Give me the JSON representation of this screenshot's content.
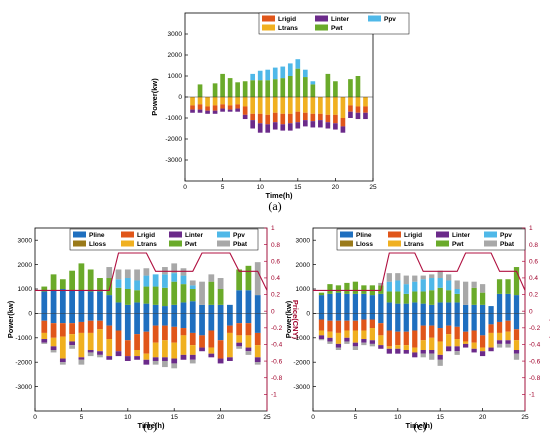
{
  "colors": {
    "Pline": "#1f6fbf",
    "Lrigid": "#e0561a",
    "Linter": "#6b2a8a",
    "Ppv": "#4fb8e8",
    "Lloss": "#9a7a1a",
    "Ltrans": "#f0b020",
    "Pwt": "#6aaa2a",
    "Pbat": "#a8a8a8",
    "price": "#b01040"
  },
  "chart_data": [
    {
      "id": "a",
      "caption": "(a)",
      "type": "bar",
      "stacked": true,
      "xlabel": "Time(h)",
      "ylabel": "Power(kw)",
      "xlim": [
        0,
        25
      ],
      "ylim": [
        -4000,
        4000
      ],
      "xticks": [
        0,
        5,
        10,
        15,
        20,
        25
      ],
      "yticks": [
        -3000,
        -2000,
        -1000,
        0,
        1000,
        2000,
        3000
      ],
      "legend": [
        "Lrigid",
        "Linter",
        "Ppv",
        "Ltrans",
        "Pwt"
      ],
      "x": [
        1,
        2,
        3,
        4,
        5,
        6,
        7,
        8,
        9,
        10,
        11,
        12,
        13,
        14,
        15,
        16,
        17,
        18,
        19,
        20,
        21,
        22,
        23,
        24
      ],
      "positive": [
        {
          "name": "Pwt",
          "values": [
            0,
            600,
            0,
            650,
            1100,
            900,
            700,
            750,
            800,
            800,
            800,
            850,
            900,
            1000,
            1350,
            950,
            600,
            0,
            1100,
            750,
            0,
            850,
            1000,
            0
          ]
        },
        {
          "name": "Ppv",
          "values": [
            0,
            0,
            0,
            0,
            0,
            0,
            0,
            0,
            300,
            450,
            500,
            550,
            550,
            600,
            450,
            350,
            150,
            0,
            0,
            0,
            0,
            0,
            0,
            0
          ]
        }
      ],
      "negative": [
        {
          "name": "Ltrans",
          "values": [
            -400,
            -350,
            -450,
            -400,
            -350,
            -400,
            -350,
            -450,
            -800,
            -800,
            -850,
            -750,
            -800,
            -800,
            -700,
            -750,
            -800,
            -800,
            -850,
            -850,
            -1000,
            -400,
            -450,
            -450
          ]
        },
        {
          "name": "Lrigid",
          "values": [
            -200,
            -250,
            -200,
            -250,
            -200,
            -200,
            -200,
            -400,
            -300,
            -450,
            -450,
            -450,
            -500,
            -450,
            -500,
            -350,
            -350,
            -300,
            -350,
            -400,
            -400,
            -300,
            -300,
            -300
          ]
        },
        {
          "name": "Linter",
          "values": [
            -150,
            -150,
            -150,
            -150,
            -150,
            -100,
            -150,
            -200,
            -400,
            -450,
            -400,
            -350,
            -300,
            -350,
            -300,
            -300,
            -300,
            -350,
            -300,
            -300,
            -300,
            -300,
            -300,
            -300
          ]
        }
      ]
    },
    {
      "id": "b",
      "caption": "(b)",
      "type": "bar",
      "stacked": true,
      "xlabel": "Time(h)",
      "ylabel": "Power(kw)",
      "y2label": "Price(CNY)",
      "xlim": [
        0,
        25
      ],
      "ylim": [
        -4000,
        3500
      ],
      "y2lim": [
        -1.2,
        1
      ],
      "xticks": [
        0,
        5,
        10,
        15,
        20,
        25
      ],
      "yticks": [
        -3000,
        -2000,
        -1000,
        0,
        1000,
        2000,
        3000
      ],
      "y2ticks": [
        "-1",
        "-0.8",
        "-0.6",
        "-0.4",
        "-0.2",
        "0",
        "0.2",
        "0.4",
        "0.6",
        "0.8",
        "1"
      ],
      "legend": [
        "Pline",
        "Lrigid",
        "Linter",
        "Ppv",
        "Lloss",
        "Ltrans",
        "Pwt",
        "Pbat"
      ],
      "x": [
        1,
        2,
        3,
        4,
        5,
        6,
        7,
        8,
        9,
        10,
        11,
        12,
        13,
        14,
        15,
        16,
        17,
        18,
        19,
        20,
        21,
        22,
        23,
        24
      ],
      "positive": [
        {
          "name": "Pline",
          "values": [
            900,
            950,
            1000,
            950,
            950,
            900,
            900,
            750,
            450,
            350,
            450,
            400,
            350,
            300,
            350,
            450,
            500,
            350,
            350,
            350,
            350,
            950,
            950,
            750
          ]
        },
        {
          "name": "Pwt",
          "values": [
            200,
            650,
            400,
            800,
            1100,
            900,
            550,
            700,
            600,
            650,
            500,
            700,
            750,
            750,
            950,
            750,
            500,
            0,
            950,
            650,
            0,
            850,
            1000,
            0
          ]
        },
        {
          "name": "Ppv",
          "values": [
            0,
            0,
            0,
            0,
            0,
            0,
            0,
            0,
            350,
            450,
            400,
            450,
            500,
            550,
            350,
            350,
            150,
            0,
            0,
            0,
            0,
            0,
            0,
            0
          ]
        },
        {
          "name": "Pbat",
          "values": [
            0,
            0,
            0,
            0,
            0,
            0,
            0,
            450,
            400,
            350,
            450,
            300,
            0,
            300,
            400,
            300,
            200,
            950,
            300,
            450,
            0,
            0,
            0,
            1350
          ]
        }
      ],
      "negative": [
        {
          "name": "Pline",
          "values": [
            -300,
            -400,
            -400,
            -400,
            -350,
            -300,
            -300,
            -500,
            -700,
            -1100,
            -850,
            -750,
            -500,
            -500,
            -550,
            -600,
            -800,
            -900,
            -700,
            -1100,
            -500,
            -400,
            -400,
            -800
          ]
        },
        {
          "name": "Lrigid",
          "values": [
            -500,
            -600,
            -550,
            -450,
            -450,
            -500,
            -350,
            -550,
            -850,
            -650,
            -650,
            -900,
            -700,
            -600,
            -650,
            -300,
            -500,
            -500,
            -700,
            -750,
            -300,
            -500,
            -500,
            -500
          ]
        },
        {
          "name": "Ltrans",
          "values": [
            -250,
            -350,
            -900,
            -300,
            -1000,
            -700,
            -900,
            -700,
            0,
            0,
            -250,
            -250,
            -600,
            -700,
            -650,
            -800,
            -400,
            0,
            -250,
            0,
            -1000,
            -300,
            -500,
            -500
          ]
        },
        {
          "name": "Linter",
          "values": [
            -150,
            -150,
            -150,
            -150,
            -100,
            -100,
            -150,
            -150,
            -200,
            -200,
            -150,
            -200,
            -150,
            -150,
            -200,
            -200,
            -200,
            -150,
            -150,
            -200,
            -150,
            -150,
            -150,
            -200
          ]
        },
        {
          "name": "Pbat",
          "values": [
            -50,
            -100,
            -100,
            -150,
            -200,
            -150,
            -100,
            0,
            0,
            0,
            0,
            0,
            -150,
            -250,
            -200,
            0,
            -150,
            0,
            0,
            0,
            0,
            -100,
            -150,
            -100
          ]
        }
      ],
      "price": {
        "x": [
          0,
          8,
          9,
          12,
          13,
          17,
          18,
          21,
          22,
          24,
          25
        ],
        "values": [
          0.25,
          0.25,
          0.7,
          0.7,
          0.48,
          0.48,
          0.7,
          0.7,
          0.48,
          0.48,
          0.25
        ]
      }
    },
    {
      "id": "c",
      "caption": "(c)",
      "type": "bar",
      "stacked": true,
      "xlabel": "Time(h)",
      "ylabel": "Power(kw)",
      "y2label": "Price(CNY)",
      "xlim": [
        0,
        25
      ],
      "ylim": [
        -4000,
        3500
      ],
      "y2lim": [
        -1.2,
        1
      ],
      "xticks": [
        0,
        5,
        10,
        15,
        20,
        25
      ],
      "yticks": [
        -3000,
        -2000,
        -1000,
        0,
        1000,
        2000,
        3000
      ],
      "y2ticks": [
        "-1",
        "-0.8",
        "-0.6",
        "-0.4",
        "-0.2",
        "0",
        "0.2",
        "0.4",
        "0.6",
        "0.8",
        "1"
      ],
      "legend": [
        "Pline",
        "Lrigid",
        "Linter",
        "Ppv",
        "Lloss",
        "Ltrans",
        "Pwt",
        "Pbat"
      ],
      "x": [
        1,
        2,
        3,
        4,
        5,
        6,
        7,
        8,
        9,
        10,
        11,
        12,
        13,
        14,
        15,
        16,
        17,
        18,
        19,
        20,
        21,
        22,
        23,
        24
      ],
      "positive": [
        {
          "name": "Pline",
          "values": [
            750,
            800,
            850,
            800,
            800,
            800,
            750,
            800,
            450,
            400,
            400,
            450,
            400,
            350,
            450,
            450,
            450,
            350,
            350,
            350,
            300,
            800,
            800,
            750
          ]
        },
        {
          "name": "Pwt",
          "values": [
            100,
            400,
            300,
            450,
            500,
            350,
            400,
            350,
            450,
            500,
            400,
            450,
            500,
            600,
            600,
            500,
            350,
            0,
            700,
            500,
            0,
            600,
            600,
            1150
          ]
        },
        {
          "name": "Ppv",
          "values": [
            0,
            0,
            0,
            0,
            0,
            0,
            0,
            0,
            400,
            450,
            400,
            400,
            500,
            500,
            400,
            400,
            200,
            0,
            0,
            0,
            0,
            0,
            0,
            0
          ]
        },
        {
          "name": "Pbat",
          "values": [
            0,
            0,
            0,
            0,
            0,
            0,
            0,
            100,
            350,
            300,
            350,
            250,
            150,
            150,
            300,
            250,
            350,
            950,
            250,
            350,
            0,
            0,
            0,
            0
          ]
        }
      ],
      "negative": [
        {
          "name": "Pline",
          "values": [
            -250,
            -300,
            -300,
            -300,
            -300,
            -250,
            -250,
            -400,
            -700,
            -750,
            -750,
            -700,
            -500,
            -500,
            -600,
            -500,
            -550,
            -750,
            -700,
            -900,
            -450,
            -350,
            -300,
            -650
          ]
        },
        {
          "name": "Lrigid",
          "values": [
            -450,
            -450,
            -500,
            -400,
            -400,
            -450,
            -350,
            -500,
            -650,
            -550,
            -550,
            -700,
            -600,
            -500,
            -550,
            -350,
            -500,
            -400,
            -500,
            -500,
            -350,
            -450,
            -450,
            -450
          ]
        },
        {
          "name": "Ltrans",
          "values": [
            -200,
            -250,
            -450,
            -300,
            -500,
            -350,
            -500,
            -400,
            -100,
            -150,
            -200,
            -200,
            -400,
            -500,
            -550,
            -500,
            -300,
            -100,
            -250,
            -150,
            -600,
            -300,
            -350,
            -400
          ]
        },
        {
          "name": "Linter",
          "values": [
            -150,
            -150,
            -150,
            -150,
            -150,
            -150,
            -150,
            -150,
            -200,
            -200,
            -150,
            -200,
            -150,
            -150,
            -200,
            -200,
            -200,
            -150,
            -150,
            -200,
            -150,
            -150,
            -150,
            -150
          ]
        },
        {
          "name": "Pbat",
          "values": [
            -50,
            -100,
            -100,
            -100,
            -150,
            -100,
            -100,
            0,
            0,
            0,
            0,
            0,
            -150,
            -250,
            -250,
            0,
            -150,
            0,
            0,
            0,
            0,
            -150,
            -150,
            -250
          ]
        }
      ],
      "price": {
        "x": [
          0,
          8,
          9,
          12,
          13,
          17,
          18,
          21,
          22,
          24,
          25
        ],
        "values": [
          0.25,
          0.25,
          0.7,
          0.7,
          0.48,
          0.48,
          0.7,
          0.7,
          0.48,
          0.48,
          0.25
        ]
      }
    }
  ]
}
